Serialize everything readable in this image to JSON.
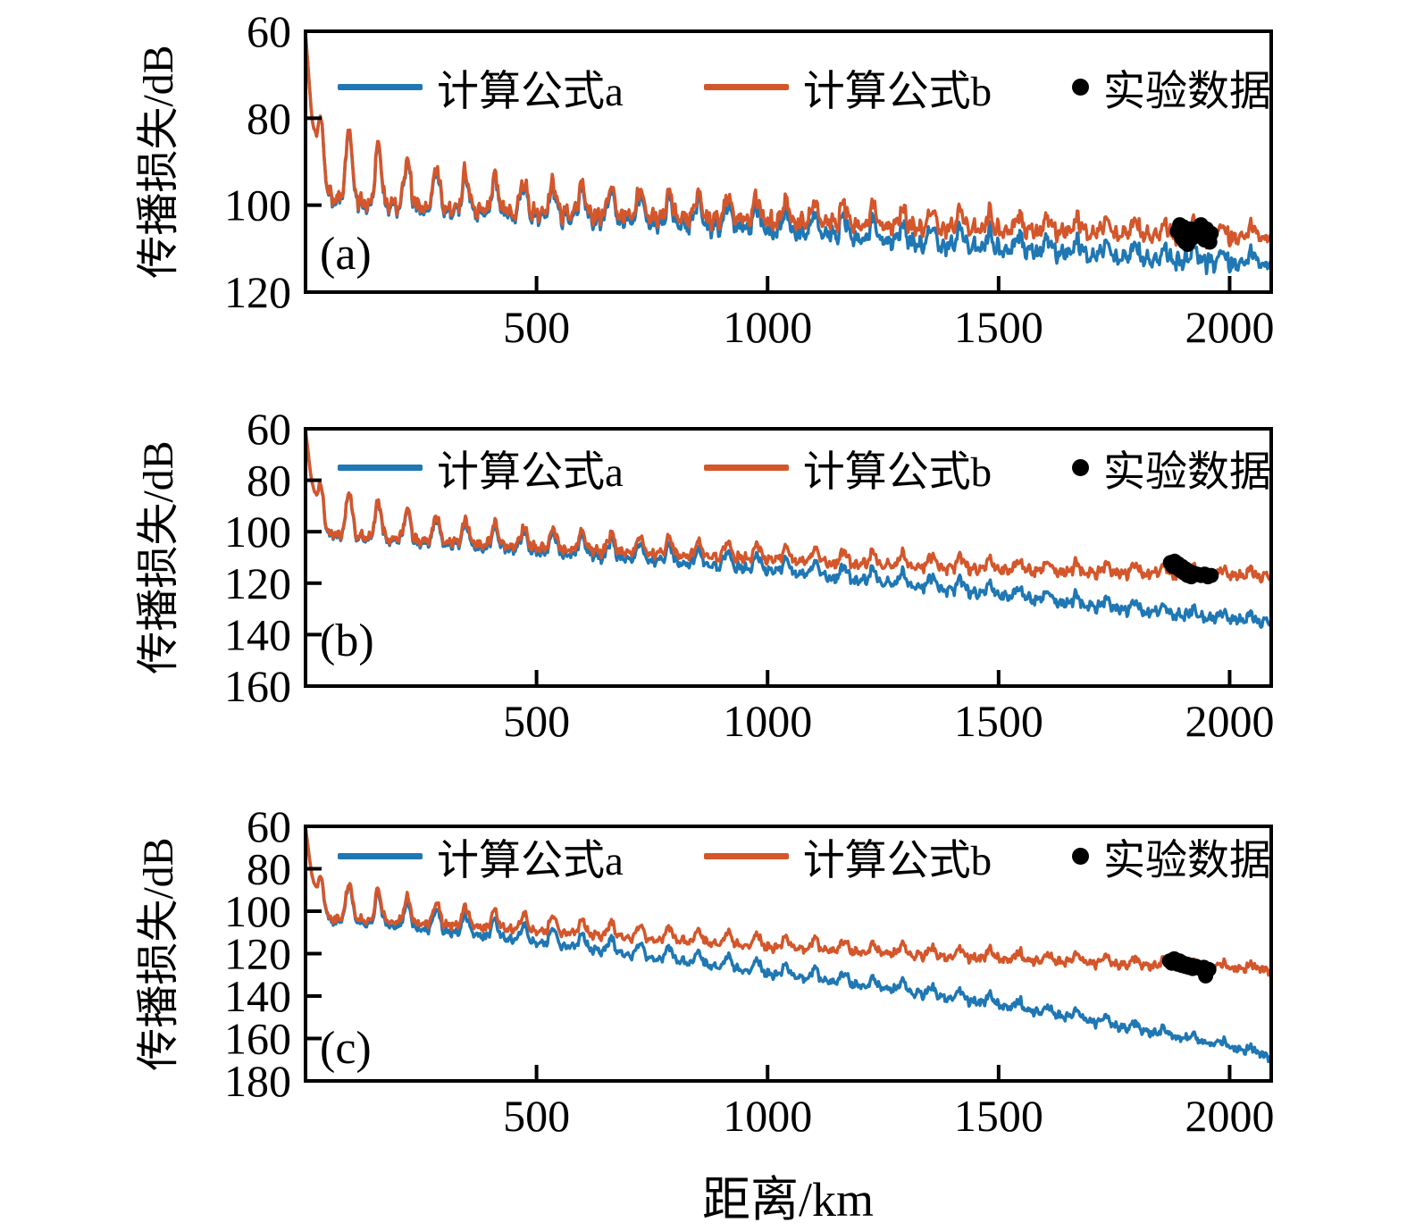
{
  "figure": {
    "background": "#ffffff"
  },
  "colors": {
    "formula_a": "#1f77b4",
    "formula_b": "#d4562b",
    "experimental": "#000000",
    "axis": "#000000"
  },
  "legend": {
    "formula_a": "计算公式a",
    "formula_b": "计算公式b",
    "experimental": "实验数据"
  },
  "axes": {
    "xlabel": "距离/km",
    "ylabel": "传播损失/dB"
  },
  "chart_data": [
    {
      "type": "line",
      "panel_label": "(a)",
      "xlabel": "距离/km",
      "ylabel": "传播损失/dB",
      "xlim": [
        0,
        2090
      ],
      "ylim": [
        60,
        120
      ],
      "xticks": [
        500,
        1000,
        1500,
        2000
      ],
      "yticks": [
        60,
        80,
        100,
        120
      ],
      "y_inverted": true,
      "grid": false,
      "legend_position": "top-inside",
      "seed": 13,
      "oscillation": {
        "period_km": 63,
        "amp_start": 8,
        "amp_end": 2.3,
        "early_boost": 2.0,
        "early_decay_km": 170,
        "noise_amp": 1.25
      },
      "series": [
        {
          "name": "计算公式a",
          "color_key": "formula_a",
          "trend": [
            [
              0,
              60.5
            ],
            [
              12,
              76
            ],
            [
              25,
              87
            ],
            [
              40,
              91
            ],
            [
              60,
              93.5
            ],
            [
              90,
              94.5
            ],
            [
              130,
              95.5
            ],
            [
              200,
              97
            ],
            [
              300,
              98.5
            ],
            [
              400,
              99.5
            ],
            [
              500,
              100.3
            ],
            [
              600,
              101
            ],
            [
              700,
              101.8
            ],
            [
              800,
              102.6
            ],
            [
              900,
              103.4
            ],
            [
              1000,
              104.2
            ],
            [
              1100,
              105.2
            ],
            [
              1200,
              106.2
            ],
            [
              1300,
              107.2
            ],
            [
              1400,
              108.2
            ],
            [
              1500,
              109
            ],
            [
              1600,
              109.8
            ],
            [
              1700,
              110.6
            ],
            [
              1800,
              111.4
            ],
            [
              1900,
              112
            ],
            [
              2000,
              112.6
            ],
            [
              2090,
              113
            ]
          ]
        },
        {
          "name": "计算公式b",
          "color_key": "formula_b",
          "trend": [
            [
              0,
              60.5
            ],
            [
              12,
              76
            ],
            [
              25,
              87
            ],
            [
              40,
              91
            ],
            [
              60,
              93
            ],
            [
              90,
              94
            ],
            [
              130,
              95
            ],
            [
              200,
              96.5
            ],
            [
              300,
              97.8
            ],
            [
              400,
              98.8
            ],
            [
              500,
              99.5
            ],
            [
              600,
              100
            ],
            [
              700,
              100.6
            ],
            [
              800,
              101.1
            ],
            [
              900,
              101.6
            ],
            [
              1000,
              102.1
            ],
            [
              1100,
              102.6
            ],
            [
              1200,
              103.1
            ],
            [
              1300,
              103.6
            ],
            [
              1400,
              104.1
            ],
            [
              1500,
              104.6
            ],
            [
              1600,
              105
            ],
            [
              1700,
              105.4
            ],
            [
              1800,
              105.8
            ],
            [
              1900,
              106.2
            ],
            [
              2000,
              106.6
            ],
            [
              2090,
              106.8
            ]
          ]
        }
      ],
      "experimental_points": [
        [
          1887,
          106
        ],
        [
          1892,
          104.5
        ],
        [
          1896,
          107.5
        ],
        [
          1900,
          105
        ],
        [
          1903,
          108.5
        ],
        [
          1906,
          106
        ],
        [
          1909,
          109
        ],
        [
          1912,
          107
        ],
        [
          1916,
          105.5
        ],
        [
          1920,
          107.5
        ],
        [
          1938,
          104.5
        ],
        [
          1942,
          106.5
        ],
        [
          1946,
          108
        ],
        [
          1950,
          105.5
        ],
        [
          1953,
          107
        ],
        [
          1957,
          108.5
        ],
        [
          1960,
          106.5
        ]
      ]
    },
    {
      "type": "line",
      "panel_label": "(b)",
      "xlabel": "距离/km",
      "ylabel": "传播损失/dB",
      "xlim": [
        0,
        2090
      ],
      "ylim": [
        60,
        160
      ],
      "xticks": [
        500,
        1000,
        1500,
        2000
      ],
      "yticks": [
        60,
        80,
        100,
        120,
        140,
        160
      ],
      "y_inverted": true,
      "grid": false,
      "legend_position": "top-inside",
      "seed": 47,
      "oscillation": {
        "period_km": 63,
        "amp_start": 8.5,
        "amp_end": 2.5,
        "early_boost": 2.0,
        "early_decay_km": 170,
        "noise_amp": 1.25
      },
      "series": [
        {
          "name": "计算公式a",
          "color_key": "formula_a",
          "trend": [
            [
              0,
              60.5
            ],
            [
              12,
              77
            ],
            [
              25,
              89
            ],
            [
              40,
              94
            ],
            [
              60,
              96
            ],
            [
              90,
              97
            ],
            [
              130,
              98
            ],
            [
              200,
              100
            ],
            [
              300,
              102
            ],
            [
              400,
              103.8
            ],
            [
              500,
              105.4
            ],
            [
              600,
              107
            ],
            [
              700,
              108.6
            ],
            [
              800,
              110.2
            ],
            [
              900,
              111.8
            ],
            [
              1000,
              113.5
            ],
            [
              1100,
              115.4
            ],
            [
              1200,
              117.4
            ],
            [
              1300,
              119.4
            ],
            [
              1400,
              121.4
            ],
            [
              1500,
              123.4
            ],
            [
              1600,
              125.6
            ],
            [
              1700,
              127.8
            ],
            [
              1800,
              130
            ],
            [
              1900,
              131.8
            ],
            [
              2000,
              133.4
            ],
            [
              2090,
              134.6
            ]
          ]
        },
        {
          "name": "计算公式b",
          "color_key": "formula_b",
          "trend": [
            [
              0,
              60.5
            ],
            [
              12,
              77
            ],
            [
              25,
              89
            ],
            [
              40,
              93.5
            ],
            [
              60,
              95.5
            ],
            [
              90,
              96.5
            ],
            [
              130,
              97.5
            ],
            [
              200,
              99.3
            ],
            [
              300,
              101
            ],
            [
              400,
              102.5
            ],
            [
              500,
              103.8
            ],
            [
              600,
              105
            ],
            [
              700,
              106.1
            ],
            [
              800,
              107.2
            ],
            [
              900,
              108.2
            ],
            [
              1000,
              109.2
            ],
            [
              1100,
              110.2
            ],
            [
              1200,
              111.1
            ],
            [
              1300,
              112
            ],
            [
              1400,
              112.8
            ],
            [
              1500,
              113.5
            ],
            [
              1600,
              114.2
            ],
            [
              1700,
              114.8
            ],
            [
              1800,
              115.4
            ],
            [
              1900,
              115.9
            ],
            [
              2000,
              116.4
            ],
            [
              2090,
              116.8
            ]
          ]
        }
      ],
      "experimental_points": [
        [
          1872,
          112
        ],
        [
          1877,
          113.5
        ],
        [
          1881,
          111.5
        ],
        [
          1885,
          114
        ],
        [
          1889,
          112.5
        ],
        [
          1893,
          115
        ],
        [
          1897,
          113.5
        ],
        [
          1901,
          116
        ],
        [
          1905,
          114.5
        ],
        [
          1909,
          117
        ],
        [
          1913,
          115.5
        ],
        [
          1917,
          117.5
        ],
        [
          1921,
          116
        ],
        [
          1930,
          116.5
        ],
        [
          1938,
          117
        ],
        [
          1946,
          116.5
        ],
        [
          1953,
          117.5
        ],
        [
          1960,
          117
        ]
      ]
    },
    {
      "type": "line",
      "panel_label": "(c)",
      "xlabel": "距离/km",
      "ylabel": "传播损失/dB",
      "xlim": [
        0,
        2090
      ],
      "ylim": [
        60,
        180
      ],
      "xticks": [
        500,
        1000,
        1500,
        2000
      ],
      "yticks": [
        60,
        80,
        100,
        120,
        140,
        160,
        180
      ],
      "y_inverted": true,
      "grid": false,
      "legend_position": "top-inside",
      "seed": 83,
      "oscillation": {
        "period_km": 63,
        "amp_start": 8.5,
        "amp_end": 2.5,
        "early_boost": 2.0,
        "early_decay_km": 170,
        "noise_amp": 1.25
      },
      "series": [
        {
          "name": "计算公式a",
          "color_key": "formula_a",
          "trend": [
            [
              0,
              60.5
            ],
            [
              12,
              79
            ],
            [
              25,
              92
            ],
            [
              40,
              96
            ],
            [
              60,
              98.5
            ],
            [
              90,
              99.5
            ],
            [
              130,
              101
            ],
            [
              200,
              103.5
            ],
            [
              300,
              106.5
            ],
            [
              400,
              109.5
            ],
            [
              500,
              112.5
            ],
            [
              600,
              115.5
            ],
            [
              700,
              118.5
            ],
            [
              800,
              121.5
            ],
            [
              900,
              124.5
            ],
            [
              1000,
              127.5
            ],
            [
              1100,
              130.5
            ],
            [
              1200,
              133.5
            ],
            [
              1300,
              136.5
            ],
            [
              1400,
              139.8
            ],
            [
              1500,
              143.2
            ],
            [
              1600,
              147
            ],
            [
              1700,
              151
            ],
            [
              1800,
              155
            ],
            [
              1900,
              159
            ],
            [
              2000,
              163.5
            ],
            [
              2090,
              168
            ]
          ]
        },
        {
          "name": "计算公式b",
          "color_key": "formula_b",
          "trend": [
            [
              0,
              60.5
            ],
            [
              12,
              79
            ],
            [
              25,
              92
            ],
            [
              40,
              95.5
            ],
            [
              60,
              97.5
            ],
            [
              90,
              98.5
            ],
            [
              130,
              99.5
            ],
            [
              200,
              101.3
            ],
            [
              300,
              103.3
            ],
            [
              400,
              105.2
            ],
            [
              500,
              107
            ],
            [
              600,
              108.8
            ],
            [
              700,
              110.4
            ],
            [
              800,
              112
            ],
            [
              900,
              113.5
            ],
            [
              1000,
              115
            ],
            [
              1100,
              116.4
            ],
            [
              1200,
              117.8
            ],
            [
              1300,
              119.1
            ],
            [
              1400,
              120.3
            ],
            [
              1500,
              121.4
            ],
            [
              1600,
              122.5
            ],
            [
              1700,
              123.5
            ],
            [
              1800,
              124.5
            ],
            [
              1900,
              125.4
            ],
            [
              2000,
              126.3
            ],
            [
              2090,
              127
            ]
          ]
        }
      ],
      "experimental_points": [
        [
          1870,
          123.5
        ],
        [
          1875,
          124.5
        ],
        [
          1880,
          122.5
        ],
        [
          1884,
          124
        ],
        [
          1888,
          125
        ],
        [
          1892,
          123.5
        ],
        [
          1896,
          125.5
        ],
        [
          1900,
          124.5
        ],
        [
          1904,
          126
        ],
        [
          1908,
          125
        ],
        [
          1912,
          126.5
        ],
        [
          1916,
          125.5
        ],
        [
          1920,
          127
        ],
        [
          1928,
          126
        ],
        [
          1936,
          127
        ],
        [
          1944,
          126.5
        ],
        [
          1948,
          130.5
        ],
        [
          1955,
          127.5
        ]
      ]
    }
  ]
}
